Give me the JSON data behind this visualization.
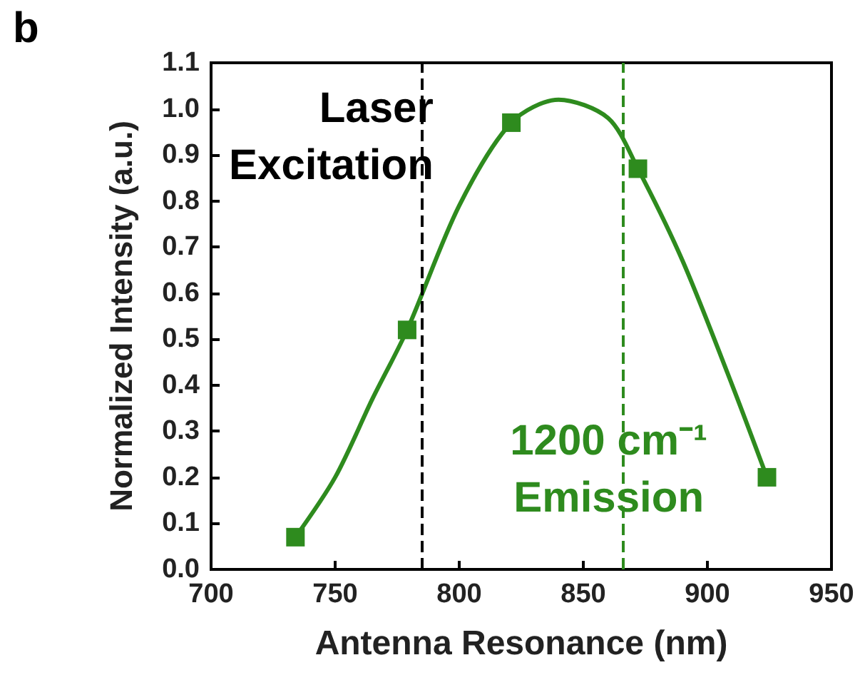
{
  "chart_data": {
    "type": "scatter",
    "title": "b",
    "xlabel": "Antenna Resonance (nm)",
    "ylabel": "Normalized Intensity (a.u.)",
    "xlim": [
      700,
      950
    ],
    "xticks": [
      700,
      750,
      800,
      850,
      900,
      950
    ],
    "ylim": [
      0,
      1.1
    ],
    "yticks": [
      {
        "value": 0,
        "label": "0.0"
      },
      0.1,
      0.2,
      0.3,
      0.4,
      0.5,
      0.6,
      0.7,
      0.8,
      0.9,
      {
        "value": 1,
        "label": "1.0"
      },
      1.1
    ],
    "marker": "square",
    "grid": false,
    "series": [
      {
        "color": "#2e8b1e",
        "x": [
          734,
          779,
          821,
          872,
          924
        ],
        "values": [
          0.07,
          0.52,
          0.97,
          0.87,
          0.2
        ]
      },
      {
        "type": "line",
        "color": "#2e8b1e",
        "marker": "none",
        "x": [
          734,
          750,
          765,
          779,
          800,
          821,
          840,
          860,
          872,
          890,
          910,
          924
        ],
        "values": [
          0.07,
          0.2,
          0.37,
          0.52,
          0.79,
          0.97,
          1.02,
          0.98,
          0.87,
          0.67,
          0.4,
          0.2
        ]
      }
    ],
    "ref_lines": [
      {
        "axis": "x",
        "value": 785,
        "color": "#000000",
        "line_style": "dashed",
        "label": "Laser\nExcitation"
      },
      {
        "axis": "x",
        "value": 866,
        "color": "#2e8b1e",
        "line_style": "dashed",
        "label": "1200 cm⁻¹\nEmission"
      }
    ]
  }
}
